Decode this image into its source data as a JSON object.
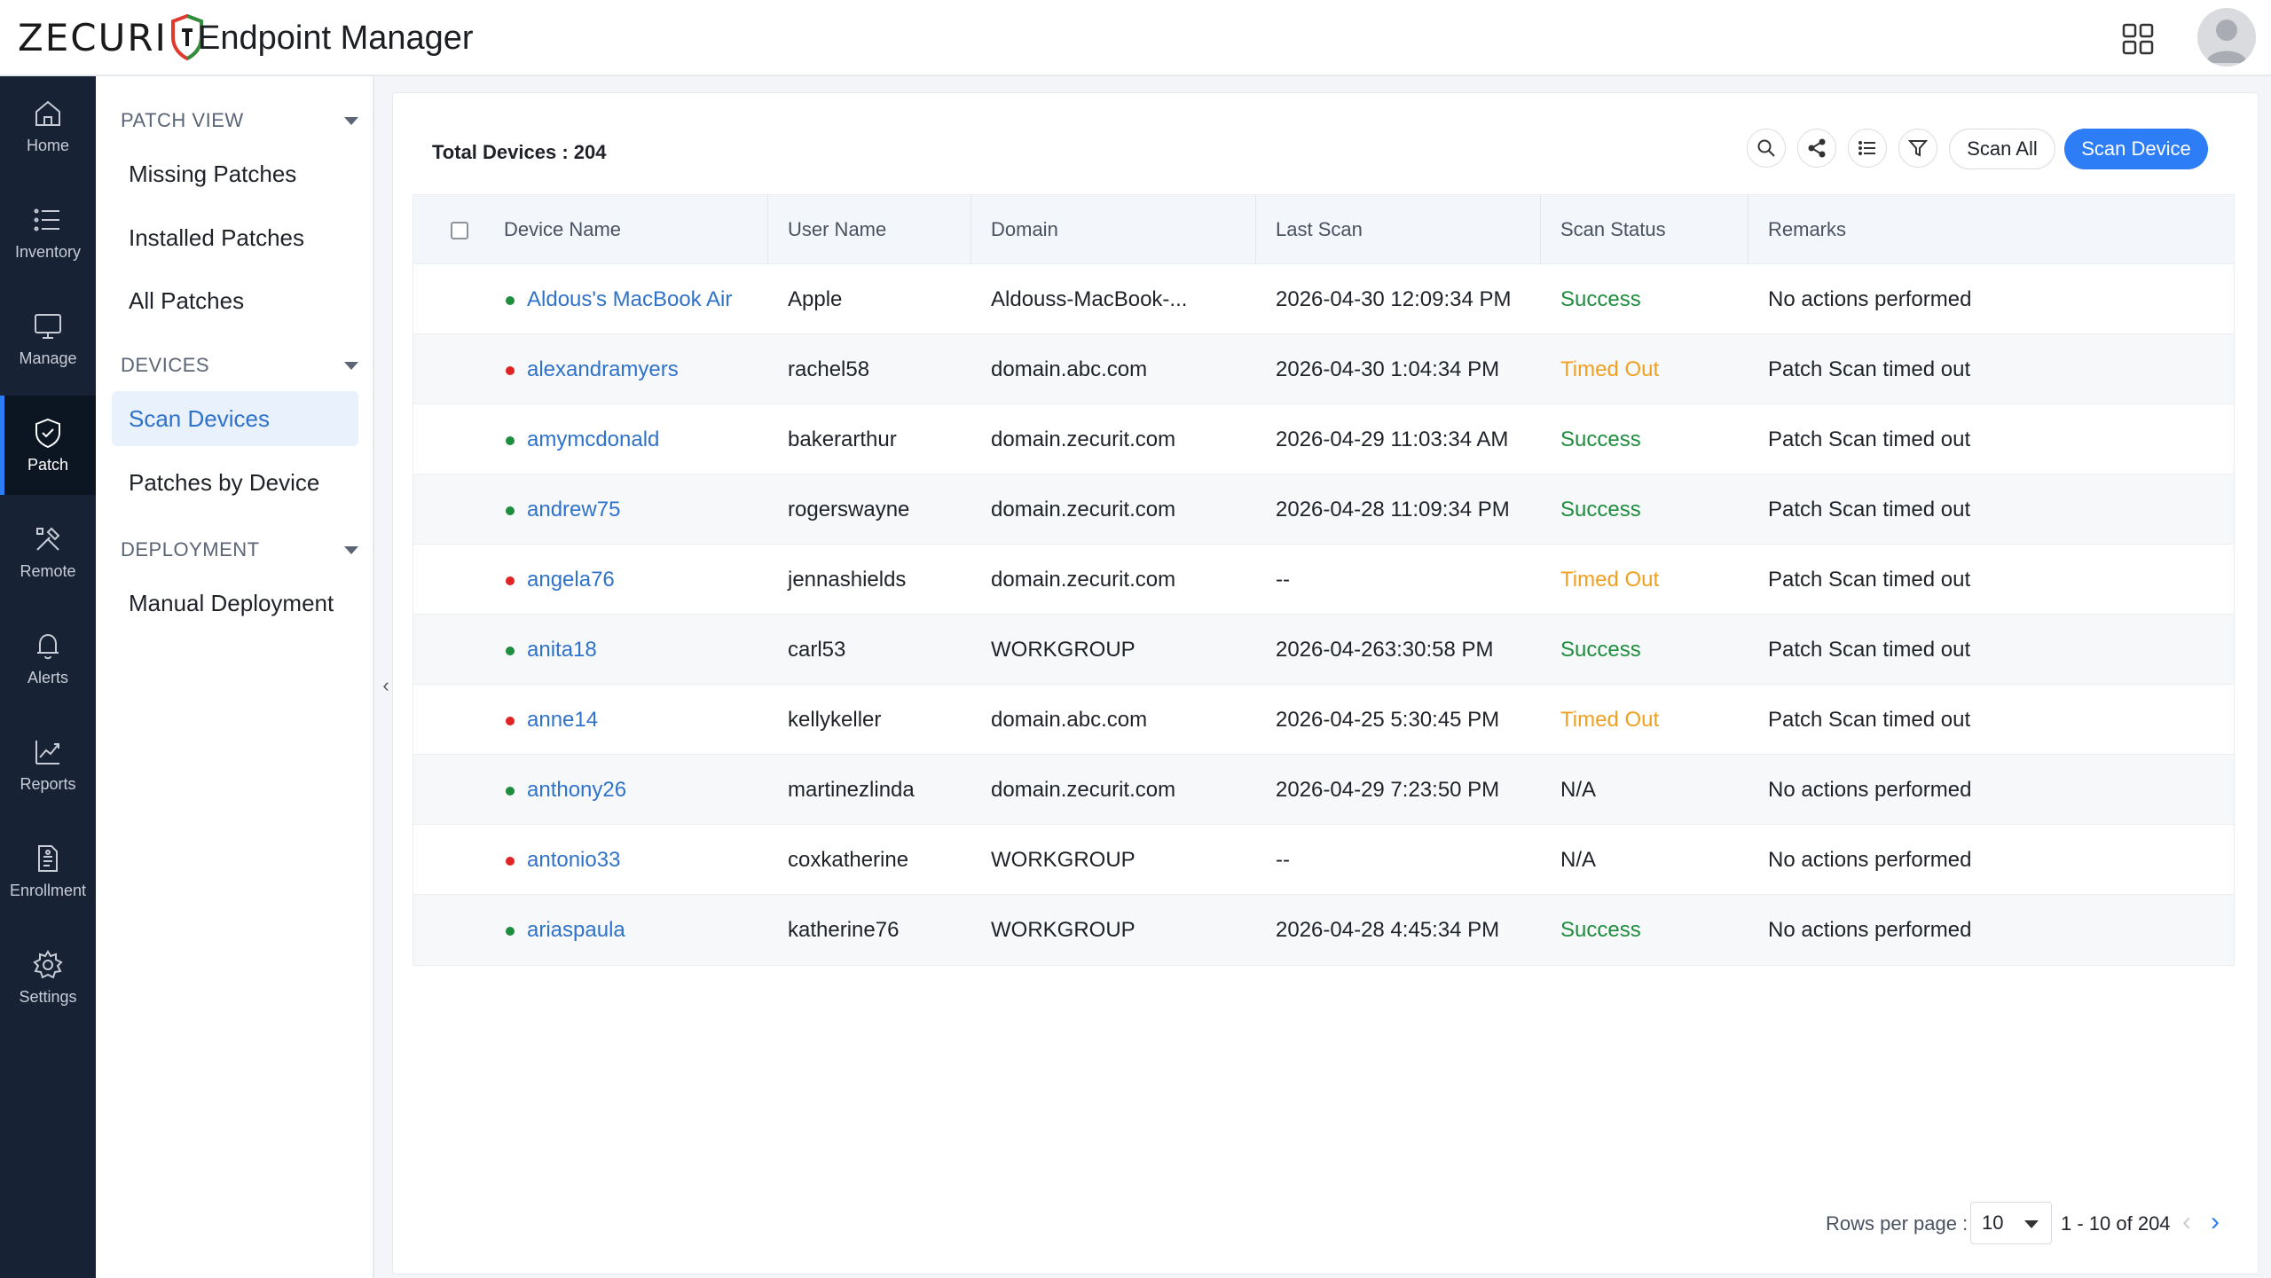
{
  "header": {
    "logo_text": "ZECURIT",
    "app_title": "Endpoint Manager"
  },
  "rail": [
    {
      "label": "Home",
      "icon": "home-icon"
    },
    {
      "label": "Inventory",
      "icon": "list-icon"
    },
    {
      "label": "Manage",
      "icon": "monitor-icon"
    },
    {
      "label": "Patch",
      "icon": "shield-icon",
      "active": true
    },
    {
      "label": "Remote",
      "icon": "tools-icon"
    },
    {
      "label": "Alerts",
      "icon": "bell-icon"
    },
    {
      "label": "Reports",
      "icon": "chart-icon"
    },
    {
      "label": "Enrollment",
      "icon": "document-icon"
    },
    {
      "label": "Settings",
      "icon": "gear-icon"
    }
  ],
  "sidebar": {
    "sections": [
      {
        "title": "PATCH VIEW",
        "items": [
          "Missing Patches",
          "Installed Patches",
          "All Patches"
        ]
      },
      {
        "title": "DEVICES",
        "items": [
          "Scan Devices",
          "Patches by Device"
        ]
      },
      {
        "title": "DEPLOYMENT",
        "items": [
          "Manual Deployment"
        ]
      }
    ],
    "active_item": "Scan Devices"
  },
  "toolbar": {
    "total_label": "Total Devices : 204",
    "scan_all_label": "Scan All",
    "scan_device_label": "Scan Device"
  },
  "table": {
    "columns": [
      "Device Name",
      "User Name",
      "Domain",
      "Last Scan",
      "Scan Status",
      "Remarks"
    ],
    "rows": [
      {
        "device": "Aldous's MacBook Air",
        "online": true,
        "user": "Apple",
        "domain": "Aldouss-MacBook-...",
        "last_scan": "2026-04-30 12:09:34 PM",
        "status": "Success",
        "remarks": "No actions performed"
      },
      {
        "device": "alexandramyers",
        "online": false,
        "user": "rachel58",
        "domain": "domain.abc.com",
        "last_scan": "2026-04-30 1:04:34 PM",
        "status": "Timed Out",
        "remarks": "Patch Scan timed out"
      },
      {
        "device": "amymcdonald",
        "online": true,
        "user": "bakerarthur",
        "domain": "domain.zecurit.com",
        "last_scan": "2026-04-29 11:03:34 AM",
        "status": "Success",
        "remarks": "Patch Scan timed out"
      },
      {
        "device": "andrew75",
        "online": true,
        "user": "rogerswayne",
        "domain": "domain.zecurit.com",
        "last_scan": "2026-04-28 11:09:34 PM",
        "status": "Success",
        "remarks": "Patch Scan timed out"
      },
      {
        "device": "angela76",
        "online": false,
        "user": "jennashields",
        "domain": "domain.zecurit.com",
        "last_scan": "--",
        "status": "Timed Out",
        "remarks": "Patch Scan timed out"
      },
      {
        "device": "anita18",
        "online": true,
        "user": "carl53",
        "domain": "WORKGROUP",
        "last_scan": "2026-04-263:30:58 PM",
        "status": "Success",
        "remarks": "Patch Scan timed out"
      },
      {
        "device": "anne14",
        "online": false,
        "user": "kellykeller",
        "domain": "domain.abc.com",
        "last_scan": "2026-04-25 5:30:45 PM",
        "status": "Timed Out",
        "remarks": "Patch Scan timed out"
      },
      {
        "device": "anthony26",
        "online": true,
        "user": "martinezlinda",
        "domain": "domain.zecurit.com",
        "last_scan": "2026-04-29 7:23:50 PM",
        "status": "N/A",
        "remarks": "No actions performed"
      },
      {
        "device": "antonio33",
        "online": false,
        "user": "coxkatherine",
        "domain": "WORKGROUP",
        "last_scan": "--",
        "status": "N/A",
        "remarks": "No actions performed"
      },
      {
        "device": "ariaspaula",
        "online": true,
        "user": "katherine76",
        "domain": "WORKGROUP",
        "last_scan": "2026-04-28 4:45:34 PM",
        "status": "Success",
        "remarks": "No actions performed"
      }
    ]
  },
  "pagination": {
    "rows_per_page_label": "Rows per page :",
    "rows_per_page": "10",
    "range": "1 - 10 of 204"
  },
  "colors": {
    "accent": "#2d7df6",
    "link": "#2f72c9",
    "success": "#1e8e3e",
    "timed_out": "#f0a020",
    "online_dot": "#1e8e3e",
    "offline_dot": "#e02424",
    "rail_bg": "#172335"
  }
}
